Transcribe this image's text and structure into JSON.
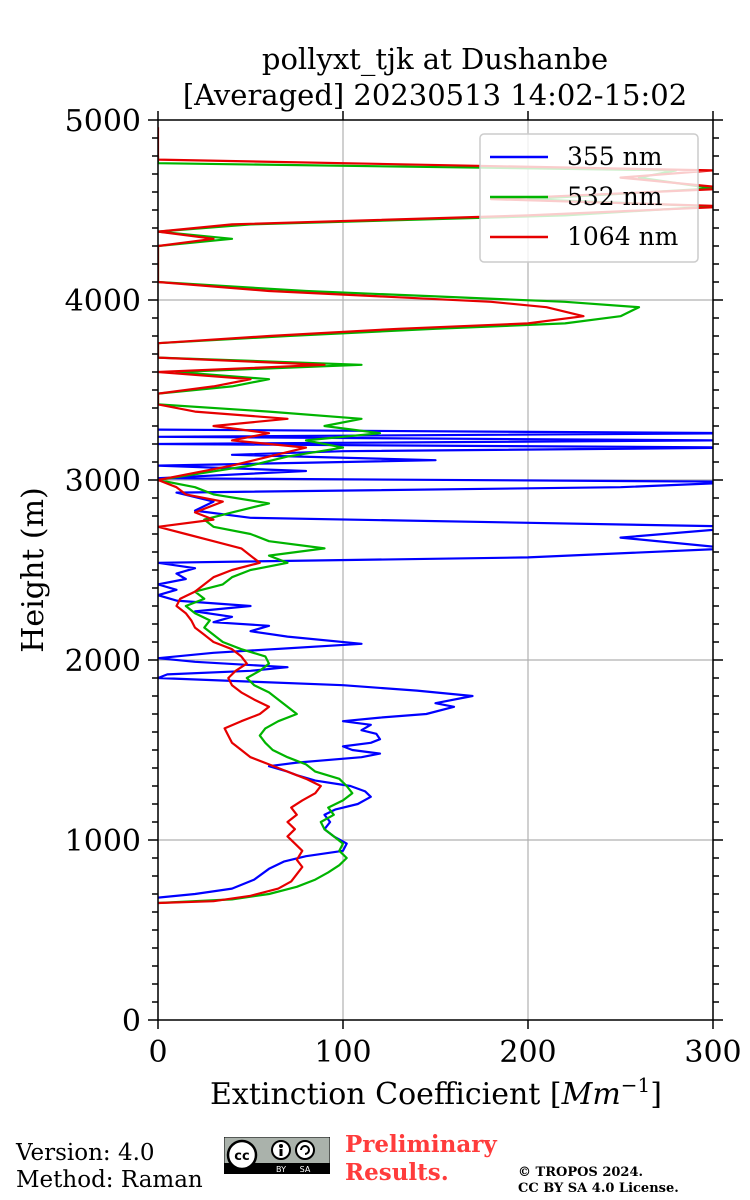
{
  "chart_data": {
    "type": "line",
    "title": [
      "pollyxt_tjk at Dushanbe",
      "[Averaged] 20230513 14:02-15:02"
    ],
    "xlabel": "Extinction Coefficient",
    "xlabel_unit_base": "Mm",
    "xlabel_unit_exp": "−1",
    "ylabel": "Height (m)",
    "xlim": [
      0,
      300
    ],
    "ylim": [
      0,
      5000
    ],
    "xticks": [
      0,
      100,
      200,
      300
    ],
    "xtick_labels": [
      "0",
      "100",
      "200",
      "300"
    ],
    "yticks": [
      0,
      1000,
      2000,
      3000,
      4000,
      5000
    ],
    "ytick_labels": [
      "0",
      "1000",
      "2000",
      "3000",
      "4000",
      "5000"
    ],
    "grid": true,
    "legend_position": "top-right",
    "series": [
      {
        "name": "355 nm",
        "color": "#0000ff",
        "points": [
          [
            0,
            680
          ],
          [
            20,
            700
          ],
          [
            40,
            730
          ],
          [
            52,
            780
          ],
          [
            60,
            840
          ],
          [
            68,
            880
          ],
          [
            80,
            910
          ],
          [
            100,
            940
          ],
          [
            102,
            980
          ],
          [
            95,
            1020
          ],
          [
            90,
            1060
          ],
          [
            93,
            1100
          ],
          [
            90,
            1140
          ],
          [
            96,
            1170
          ],
          [
            108,
            1200
          ],
          [
            115,
            1240
          ],
          [
            112,
            1270
          ],
          [
            104,
            1300
          ],
          [
            85,
            1330
          ],
          [
            75,
            1360
          ],
          [
            70,
            1380
          ],
          [
            60,
            1410
          ],
          [
            75,
            1430
          ],
          [
            110,
            1460
          ],
          [
            120,
            1480
          ],
          [
            105,
            1500
          ],
          [
            100,
            1520
          ],
          [
            115,
            1540
          ],
          [
            120,
            1560
          ],
          [
            118,
            1590
          ],
          [
            110,
            1610
          ],
          [
            115,
            1640
          ],
          [
            100,
            1660
          ],
          [
            120,
            1680
          ],
          [
            145,
            1700
          ],
          [
            160,
            1740
          ],
          [
            150,
            1760
          ],
          [
            170,
            1800
          ],
          [
            140,
            1830
          ],
          [
            100,
            1860
          ],
          [
            50,
            1880
          ],
          [
            0,
            1900
          ],
          [
            5,
            1920
          ],
          [
            50,
            1940
          ],
          [
            70,
            1960
          ],
          [
            20,
            1990
          ],
          [
            0,
            2010
          ],
          [
            30,
            2040
          ],
          [
            110,
            2090
          ],
          [
            70,
            2130
          ],
          [
            50,
            2160
          ],
          [
            60,
            2190
          ],
          [
            30,
            2210
          ],
          [
            40,
            2240
          ],
          [
            20,
            2270
          ],
          [
            50,
            2300
          ],
          [
            10,
            2330
          ],
          [
            0,
            2360
          ],
          [
            10,
            2390
          ],
          [
            0,
            2420
          ],
          [
            15,
            2450
          ],
          [
            10,
            2480
          ],
          [
            20,
            2510
          ],
          [
            0,
            2540
          ],
          [
            200,
            2570
          ],
          [
            310,
            2620
          ],
          [
            250,
            2680
          ],
          [
            320,
            2740
          ],
          [
            50,
            2790
          ],
          [
            20,
            2830
          ],
          [
            30,
            2880
          ],
          [
            10,
            2930
          ],
          [
            250,
            2960
          ],
          [
            320,
            2990
          ],
          [
            0,
            3010
          ],
          [
            80,
            3050
          ],
          [
            0,
            3080
          ],
          [
            150,
            3110
          ],
          [
            40,
            3140
          ],
          [
            100,
            3160
          ],
          [
            320,
            3180
          ],
          [
            0,
            3200
          ],
          [
            300,
            3220
          ],
          [
            0,
            3240
          ],
          [
            320,
            3260
          ],
          [
            0,
            3280
          ]
        ]
      },
      {
        "name": "532 nm",
        "color": "#00b400",
        "points": [
          [
            0,
            650
          ],
          [
            40,
            670
          ],
          [
            60,
            700
          ],
          [
            75,
            740
          ],
          [
            85,
            780
          ],
          [
            92,
            820
          ],
          [
            98,
            860
          ],
          [
            102,
            900
          ],
          [
            98,
            940
          ],
          [
            100,
            980
          ],
          [
            95,
            1020
          ],
          [
            90,
            1060
          ],
          [
            88,
            1100
          ],
          [
            95,
            1140
          ],
          [
            92,
            1180
          ],
          [
            100,
            1220
          ],
          [
            105,
            1260
          ],
          [
            102,
            1300
          ],
          [
            98,
            1340
          ],
          [
            85,
            1380
          ],
          [
            80,
            1420
          ],
          [
            70,
            1460
          ],
          [
            62,
            1500
          ],
          [
            58,
            1540
          ],
          [
            55,
            1580
          ],
          [
            58,
            1620
          ],
          [
            65,
            1660
          ],
          [
            75,
            1700
          ],
          [
            70,
            1740
          ],
          [
            65,
            1780
          ],
          [
            60,
            1820
          ],
          [
            52,
            1860
          ],
          [
            48,
            1900
          ],
          [
            55,
            1940
          ],
          [
            60,
            1980
          ],
          [
            58,
            2020
          ],
          [
            45,
            2060
          ],
          [
            35,
            2100
          ],
          [
            30,
            2140
          ],
          [
            25,
            2180
          ],
          [
            28,
            2220
          ],
          [
            20,
            2260
          ],
          [
            15,
            2300
          ],
          [
            25,
            2340
          ],
          [
            20,
            2380
          ],
          [
            35,
            2420
          ],
          [
            40,
            2460
          ],
          [
            50,
            2500
          ],
          [
            70,
            2540
          ],
          [
            60,
            2580
          ],
          [
            90,
            2620
          ],
          [
            60,
            2660
          ],
          [
            50,
            2700
          ],
          [
            30,
            2740
          ],
          [
            25,
            2780
          ],
          [
            40,
            2820
          ],
          [
            60,
            2870
          ],
          [
            30,
            2920
          ],
          [
            20,
            2960
          ],
          [
            0,
            3000
          ],
          [
            50,
            3080
          ],
          [
            70,
            3130
          ],
          [
            100,
            3180
          ],
          [
            80,
            3220
          ],
          [
            120,
            3260
          ],
          [
            90,
            3300
          ],
          [
            110,
            3340
          ],
          [
            60,
            3380
          ],
          [
            0,
            3420
          ],
          [
            0,
            3480
          ],
          [
            40,
            3520
          ],
          [
            60,
            3560
          ],
          [
            10,
            3600
          ],
          [
            110,
            3640
          ],
          [
            0,
            3680
          ],
          [
            0,
            3760
          ],
          [
            70,
            3800
          ],
          [
            150,
            3840
          ],
          [
            220,
            3870
          ],
          [
            250,
            3910
          ],
          [
            260,
            3960
          ],
          [
            220,
            3990
          ],
          [
            150,
            4020
          ],
          [
            80,
            4050
          ],
          [
            0,
            4100
          ],
          [
            0,
            4300
          ],
          [
            40,
            4340
          ],
          [
            0,
            4380
          ],
          [
            50,
            4420
          ],
          [
            220,
            4470
          ],
          [
            300,
            4520
          ],
          [
            200,
            4560
          ],
          [
            300,
            4620
          ],
          [
            260,
            4680
          ],
          [
            280,
            4720
          ],
          [
            0,
            4760
          ],
          [
            0,
            4800
          ]
        ]
      },
      {
        "name": "1064 nm",
        "color": "#e60000",
        "points": [
          [
            0,
            650
          ],
          [
            30,
            660
          ],
          [
            50,
            690
          ],
          [
            65,
            730
          ],
          [
            72,
            770
          ],
          [
            75,
            810
          ],
          [
            78,
            850
          ],
          [
            75,
            890
          ],
          [
            78,
            940
          ],
          [
            74,
            980
          ],
          [
            70,
            1020
          ],
          [
            74,
            1060
          ],
          [
            70,
            1100
          ],
          [
            75,
            1140
          ],
          [
            72,
            1180
          ],
          [
            78,
            1220
          ],
          [
            85,
            1260
          ],
          [
            88,
            1300
          ],
          [
            80,
            1340
          ],
          [
            70,
            1380
          ],
          [
            60,
            1420
          ],
          [
            50,
            1460
          ],
          [
            45,
            1500
          ],
          [
            40,
            1540
          ],
          [
            38,
            1580
          ],
          [
            36,
            1620
          ],
          [
            45,
            1660
          ],
          [
            55,
            1700
          ],
          [
            60,
            1740
          ],
          [
            52,
            1780
          ],
          [
            45,
            1820
          ],
          [
            40,
            1860
          ],
          [
            38,
            1900
          ],
          [
            42,
            1940
          ],
          [
            48,
            1980
          ],
          [
            45,
            2020
          ],
          [
            40,
            2060
          ],
          [
            30,
            2100
          ],
          [
            25,
            2140
          ],
          [
            20,
            2180
          ],
          [
            18,
            2220
          ],
          [
            15,
            2260
          ],
          [
            10,
            2300
          ],
          [
            12,
            2340
          ],
          [
            20,
            2380
          ],
          [
            25,
            2420
          ],
          [
            30,
            2460
          ],
          [
            40,
            2500
          ],
          [
            55,
            2540
          ],
          [
            50,
            2580
          ],
          [
            45,
            2620
          ],
          [
            30,
            2660
          ],
          [
            15,
            2700
          ],
          [
            0,
            2740
          ],
          [
            30,
            2780
          ],
          [
            20,
            2820
          ],
          [
            35,
            2880
          ],
          [
            15,
            2920
          ],
          [
            10,
            2960
          ],
          [
            0,
            3000
          ],
          [
            40,
            3080
          ],
          [
            60,
            3130
          ],
          [
            80,
            3180
          ],
          [
            40,
            3220
          ],
          [
            60,
            3260
          ],
          [
            30,
            3300
          ],
          [
            70,
            3340
          ],
          [
            20,
            3380
          ],
          [
            0,
            3420
          ],
          [
            0,
            3480
          ],
          [
            30,
            3520
          ],
          [
            50,
            3560
          ],
          [
            0,
            3600
          ],
          [
            90,
            3640
          ],
          [
            0,
            3680
          ],
          [
            0,
            3760
          ],
          [
            60,
            3800
          ],
          [
            130,
            3840
          ],
          [
            200,
            3870
          ],
          [
            230,
            3910
          ],
          [
            210,
            3960
          ],
          [
            180,
            3990
          ],
          [
            120,
            4020
          ],
          [
            60,
            4050
          ],
          [
            0,
            4100
          ],
          [
            0,
            4300
          ],
          [
            30,
            4340
          ],
          [
            0,
            4380
          ],
          [
            40,
            4420
          ],
          [
            200,
            4470
          ],
          [
            310,
            4520
          ],
          [
            180,
            4560
          ],
          [
            310,
            4620
          ],
          [
            250,
            4680
          ],
          [
            300,
            4720
          ],
          [
            0,
            4780
          ],
          [
            0,
            4960
          ]
        ]
      }
    ]
  },
  "footer": {
    "version": "Version: 4.0",
    "method": "Method: Raman",
    "preliminary_line1": "Preliminary",
    "preliminary_line2": "Results.",
    "copyright_line1": "© TROPOS 2024.",
    "copyright_line2": "CC BY SA 4.0 License.",
    "cc_badge": {
      "cc": "cc",
      "by": "BY",
      "sa": "SA"
    }
  }
}
